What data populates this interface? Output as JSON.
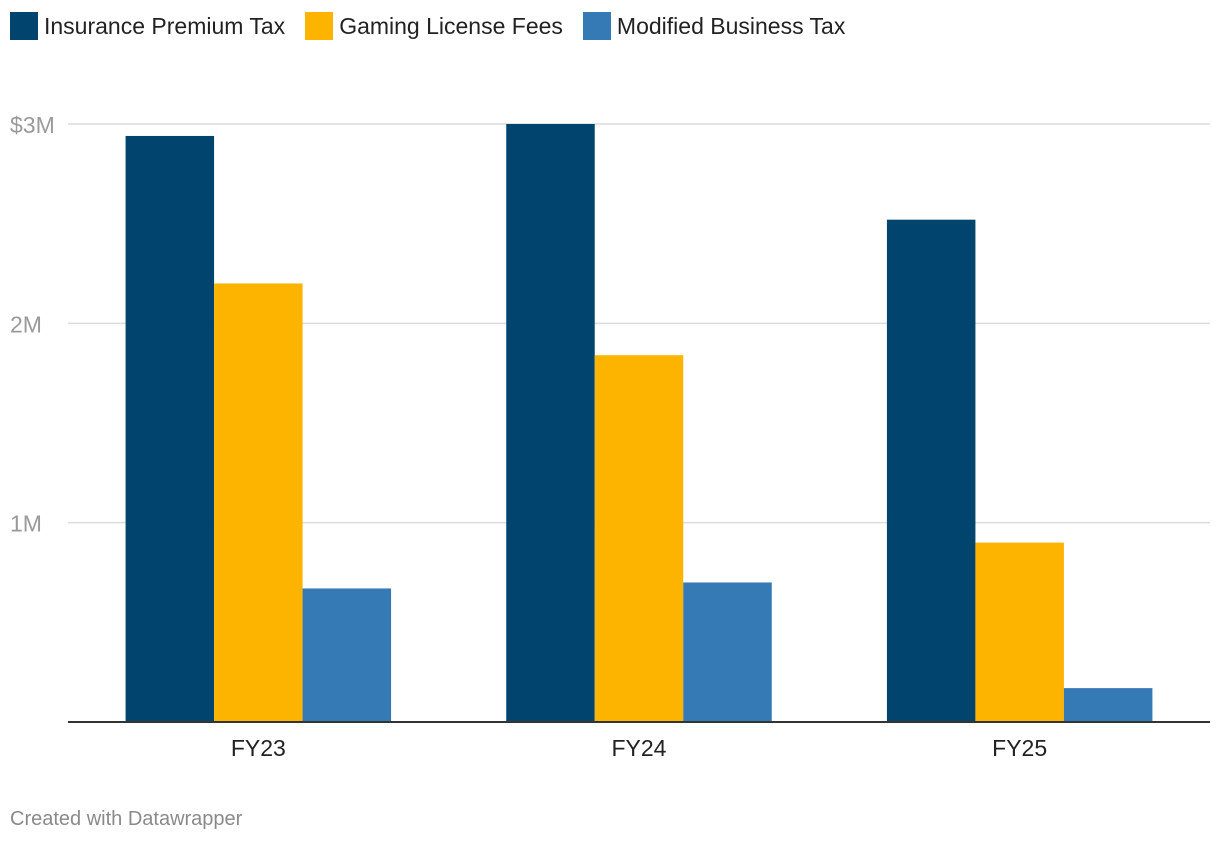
{
  "chart_data": {
    "type": "bar",
    "categories": [
      "FY23",
      "FY24",
      "FY25"
    ],
    "series": [
      {
        "name": "Insurance Premium Tax",
        "color": "#01456e",
        "values": [
          2.94,
          3.0,
          2.52
        ]
      },
      {
        "name": "Gaming License Fees",
        "color": "#fdb400",
        "values": [
          2.2,
          1.84,
          0.9
        ]
      },
      {
        "name": "Modified Business Tax",
        "color": "#3579b5",
        "values": [
          0.67,
          0.7,
          0.17
        ]
      }
    ],
    "yticks": [
      {
        "value": 1,
        "label": "1M"
      },
      {
        "value": 2,
        "label": "2M"
      },
      {
        "value": 3,
        "label": "$3M"
      }
    ],
    "ylim": [
      0,
      3
    ],
    "units": "millions of dollars",
    "title": "",
    "xlabel": "",
    "ylabel": "",
    "legend_position": "top-left",
    "grid": true
  },
  "footer": {
    "credit": "Created with Datawrapper"
  }
}
